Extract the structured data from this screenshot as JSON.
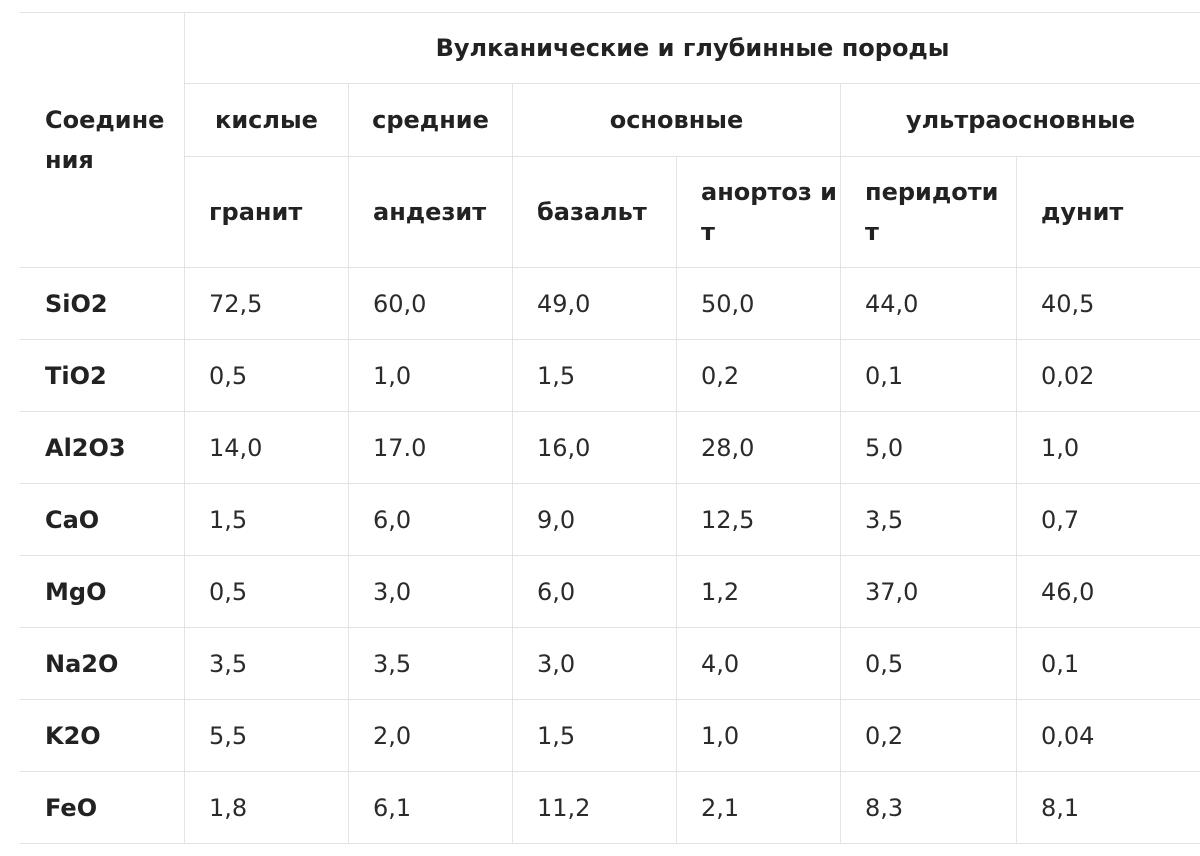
{
  "table": {
    "corner_label": "Соедине ния",
    "group_title": "Вулканические и глубинные породы",
    "categories": [
      "кислые",
      "средние",
      "основные",
      "ультраосновные"
    ],
    "rocks": [
      "гранит",
      "андезит",
      "базальт",
      "анортоз ит",
      "перидоти т",
      "дунит"
    ],
    "rows": [
      {
        "compound": "SiO2",
        "values": [
          "72,5",
          "60,0",
          "49,0",
          "50,0",
          "44,0",
          "40,5"
        ]
      },
      {
        "compound": "TiO2",
        "values": [
          "0,5",
          "1,0",
          "1,5",
          "0,2",
          "0,1",
          "0,02"
        ]
      },
      {
        "compound": "Al2O3",
        "values": [
          "14,0",
          "17.0",
          "16,0",
          "28,0",
          "5,0",
          "1,0"
        ]
      },
      {
        "compound": "CaO",
        "values": [
          "1,5",
          "6,0",
          "9,0",
          "12,5",
          "3,5",
          "0,7"
        ]
      },
      {
        "compound": "MgO",
        "values": [
          "0,5",
          "3,0",
          "6,0",
          "1,2",
          "37,0",
          "46,0"
        ]
      },
      {
        "compound": "Na2O",
        "values": [
          "3,5",
          "3,5",
          "3,0",
          "4,0",
          "0,5",
          "0,1"
        ]
      },
      {
        "compound": "K2O",
        "values": [
          "5,5",
          "2,0",
          "1,5",
          "1,0",
          "0,2",
          "0,04"
        ]
      },
      {
        "compound": "FeO",
        "values": [
          "1,8",
          "6,1",
          "11,2",
          "2,1",
          "8,3",
          "8,1"
        ]
      }
    ]
  }
}
